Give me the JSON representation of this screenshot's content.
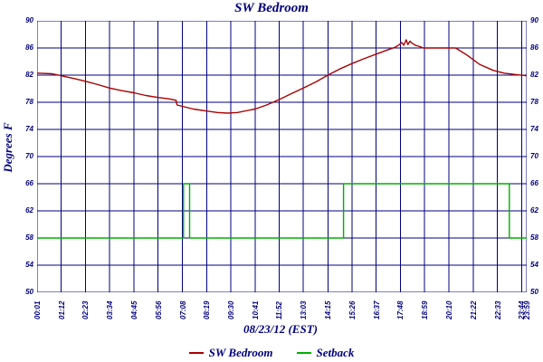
{
  "chart_data": {
    "type": "line",
    "title": "SW Bedroom",
    "xlabel": "08/23/12 (EST)",
    "ylabel": "Degrees F",
    "ylim": [
      50,
      90
    ],
    "y_tick_labels": [
      90,
      86,
      82,
      78,
      74,
      70,
      66,
      62,
      58,
      54,
      50
    ],
    "xlim_minutes": [
      1,
      1439
    ],
    "x_ticks": [
      {
        "label": "00:01",
        "minute": 1
      },
      {
        "label": "01:12",
        "minute": 72
      },
      {
        "label": "02:23",
        "minute": 143
      },
      {
        "label": "03:34",
        "minute": 214
      },
      {
        "label": "04:45",
        "minute": 285
      },
      {
        "label": "05:56",
        "minute": 356
      },
      {
        "label": "07:08",
        "minute": 428
      },
      {
        "label": "08:19",
        "minute": 499
      },
      {
        "label": "09:30",
        "minute": 570
      },
      {
        "label": "10:41",
        "minute": 641
      },
      {
        "label": "11:52",
        "minute": 712
      },
      {
        "label": "13:03",
        "minute": 783
      },
      {
        "label": "14:15",
        "minute": 855
      },
      {
        "label": "15:26",
        "minute": 926
      },
      {
        "label": "16:37",
        "minute": 997
      },
      {
        "label": "17:48",
        "minute": 1068
      },
      {
        "label": "18:59",
        "minute": 1139
      },
      {
        "label": "20:10",
        "minute": 1210
      },
      {
        "label": "21:22",
        "minute": 1282
      },
      {
        "label": "22:33",
        "minute": 1353
      },
      {
        "label": "23:44",
        "minute": 1424
      },
      {
        "label": "23:59",
        "minute": 1439
      }
    ],
    "grid": true,
    "legend_position": "bottom",
    "axis_color": "#000080",
    "series": [
      {
        "name": "SW Bedroom",
        "color": "#aa0000",
        "points": [
          [
            1,
            82.3
          ],
          [
            45,
            82.2
          ],
          [
            72,
            81.9
          ],
          [
            110,
            81.5
          ],
          [
            143,
            81.1
          ],
          [
            180,
            80.6
          ],
          [
            214,
            80.1
          ],
          [
            250,
            79.7
          ],
          [
            285,
            79.4
          ],
          [
            320,
            79.0
          ],
          [
            356,
            78.7
          ],
          [
            390,
            78.5
          ],
          [
            409,
            78.3
          ],
          [
            412,
            77.6
          ],
          [
            428,
            77.4
          ],
          [
            460,
            77.0
          ],
          [
            499,
            76.7
          ],
          [
            530,
            76.5
          ],
          [
            560,
            76.4
          ],
          [
            590,
            76.5
          ],
          [
            620,
            76.8
          ],
          [
            641,
            77.0
          ],
          [
            675,
            77.6
          ],
          [
            712,
            78.4
          ],
          [
            745,
            79.2
          ],
          [
            783,
            80.1
          ],
          [
            820,
            81.0
          ],
          [
            855,
            82.0
          ],
          [
            890,
            82.9
          ],
          [
            926,
            83.7
          ],
          [
            960,
            84.4
          ],
          [
            997,
            85.1
          ],
          [
            1030,
            85.7
          ],
          [
            1052,
            86.1
          ],
          [
            1065,
            86.5
          ],
          [
            1072,
            86.8
          ],
          [
            1078,
            86.4
          ],
          [
            1085,
            87.2
          ],
          [
            1090,
            86.5
          ],
          [
            1096,
            87.0
          ],
          [
            1102,
            86.7
          ],
          [
            1112,
            86.4
          ],
          [
            1125,
            86.2
          ],
          [
            1135,
            86.0
          ],
          [
            1230,
            86.0
          ],
          [
            1265,
            84.9
          ],
          [
            1300,
            83.6
          ],
          [
            1340,
            82.7
          ],
          [
            1372,
            82.3
          ],
          [
            1405,
            82.1
          ],
          [
            1439,
            81.9
          ]
        ]
      },
      {
        "name": "Setback",
        "color": "#00b000",
        "points": [
          [
            1,
            58
          ],
          [
            431,
            58
          ],
          [
            431,
            66
          ],
          [
            449,
            66
          ],
          [
            449,
            58
          ],
          [
            901,
            58
          ],
          [
            901,
            66
          ],
          [
            1388,
            66
          ],
          [
            1388,
            58
          ],
          [
            1439,
            58
          ]
        ]
      }
    ]
  }
}
